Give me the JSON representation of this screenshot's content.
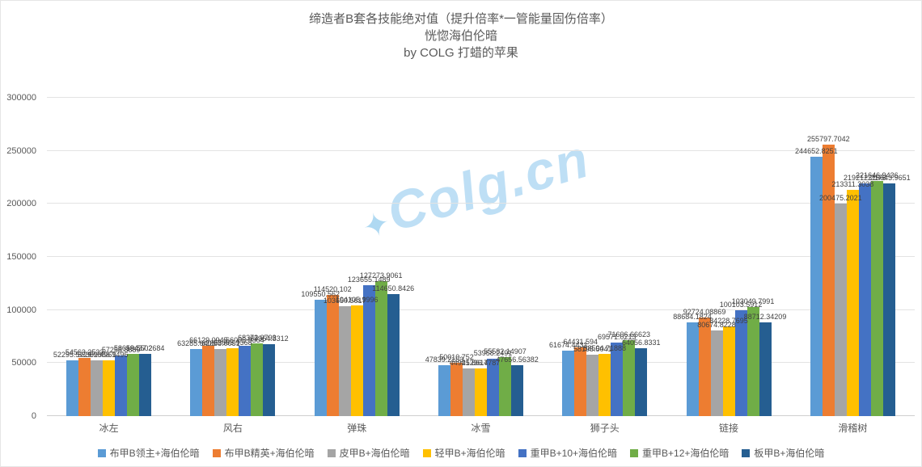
{
  "title": {
    "line1": "缔造者B套各技能绝对值（提升倍率*一管能量固伤倍率）",
    "line2": "恍惚海伯伦暗",
    "line3": "by COLG 打蜡的苹果"
  },
  "watermark": "Colg.cn",
  "chart_data": {
    "type": "bar",
    "title": "缔造者B套各技能绝对值（提升倍率*一管能量固伤倍率） 恍惚海伯伦暗 by COLG 打蜡的苹果",
    "categories": [
      "冰左",
      "风右",
      "弹珠",
      "冰雪",
      "狮子头",
      "链接",
      "滑稽树"
    ],
    "series": [
      {
        "name": "布甲B领主+海伯伦暗",
        "color": "#5B9BD5",
        "values": [
          52295.5729,
          63285.6405,
          109550.562,
          47839.2153,
          61674.4431,
          88684.1824,
          244652.8251
        ]
      },
      {
        "name": "布甲B精英+海伯伦暗",
        "color": "#ED7D31",
        "values": [
          54563.2533,
          66129.0945,
          114520.102,
          50010.752,
          64431.594,
          92724.08869,
          255797.7042
        ]
      },
      {
        "name": "皮甲B+海伯伦暗",
        "color": "#A5A5A5",
        "values": [
          52309.4961,
          62858.0051,
          103650.5617,
          44921.8617,
          58195.5041,
          80674.8228,
          200475.2021
        ]
      },
      {
        "name": "轻甲B+海伯伦暗",
        "color": "#FFC000",
        "values": [
          52888.9496,
          63605.9368,
          104105.9996,
          45236.4787,
          58504.71888,
          84228.7695,
          213311.3038
        ]
      },
      {
        "name": "重甲B+10+海伯伦暗",
        "color": "#4472C4",
        "values": [
          57258.8889,
          66005.9364,
          123655.1489,
          53958.2491,
          69571.0213,
          100103.5912,
          219212.2176
        ]
      },
      {
        "name": "重甲B+12+海伯伦暗",
        "color": "#70AD47",
        "values": [
          58619.5502,
          68373.0793,
          127273.9061,
          55582.14907,
          71606.66623,
          103049.7991,
          221646.9436
        ]
      },
      {
        "name": "板甲B+海伯伦暗",
        "color": "#255E91",
        "values": [
          58437.2684,
          67964.8312,
          114650.8426,
          47656.56382,
          64056.8331,
          88712.34209,
          219643.9651
        ]
      }
    ],
    "y_ticks": [
      0,
      50000,
      100000,
      150000,
      200000,
      250000,
      300000
    ],
    "y_max": 300000,
    "ylim": [
      0,
      300000
    ],
    "grid": true,
    "legend_position": "bottom",
    "xlabel": "",
    "ylabel": ""
  }
}
